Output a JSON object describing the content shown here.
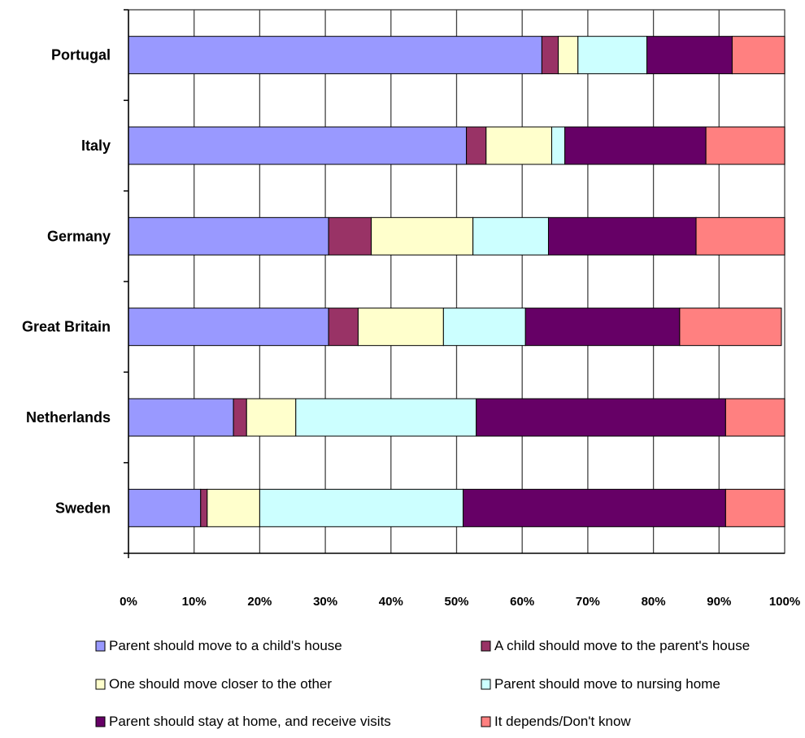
{
  "chart_data": {
    "type": "bar",
    "orientation": "horizontal",
    "stacked": true,
    "categories": [
      "Portugal",
      "Italy",
      "Germany",
      "Great Britain",
      "Netherlands",
      "Sweden"
    ],
    "series": [
      {
        "name": "Parent should move to a child's house",
        "color": "#9999ff",
        "values": [
          63,
          51.5,
          30.5,
          30.5,
          16,
          11
        ]
      },
      {
        "name": "A child should move to the parent's house",
        "color": "#993366",
        "values": [
          2.5,
          3,
          6.5,
          4.5,
          2,
          1
        ]
      },
      {
        "name": "One should move closer to the other",
        "color": "#ffffcc",
        "values": [
          3,
          10,
          15.5,
          13,
          7.5,
          8
        ]
      },
      {
        "name": "Parent should move to nursing home",
        "color": "#ccffff",
        "values": [
          10.5,
          2,
          11.5,
          12.5,
          27.5,
          31
        ]
      },
      {
        "name": "Parent should stay at home, and receive visits",
        "color": "#660066",
        "values": [
          13,
          21.5,
          22.5,
          23.5,
          38,
          40
        ]
      },
      {
        "name": "It depends/Don't know",
        "color": "#ff8080",
        "values": [
          8,
          12,
          13.5,
          15.5,
          9,
          9
        ]
      }
    ],
    "xlim": [
      0,
      100
    ],
    "x_ticks": [
      "0%",
      "10%",
      "20%",
      "30%",
      "40%",
      "50%",
      "60%",
      "70%",
      "80%",
      "90%",
      "100%"
    ],
    "grid": true,
    "legend_position": "bottom"
  }
}
